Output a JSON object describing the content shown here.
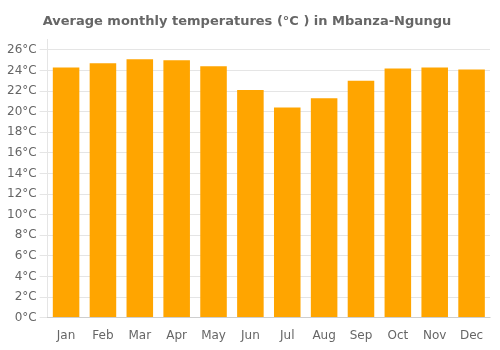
{
  "chart_data": {
    "type": "bar",
    "title": "Average monthly temperatures (°C ) in Mbanza-Ngungu",
    "categories": [
      "Jan",
      "Feb",
      "Mar",
      "Apr",
      "May",
      "Jun",
      "Jul",
      "Aug",
      "Sep",
      "Oct",
      "Nov",
      "Dec"
    ],
    "values": [
      24.3,
      24.7,
      25.1,
      25.0,
      24.4,
      22.1,
      20.4,
      21.3,
      23.0,
      24.2,
      24.3,
      24.1
    ],
    "color": "#FFA500",
    "ylim": [
      0,
      27
    ],
    "yticks": [
      {
        "value": 0,
        "label": "0°C"
      },
      {
        "value": 2,
        "label": "2°C"
      },
      {
        "value": 4,
        "label": "4°C"
      },
      {
        "value": 6,
        "label": "6°C"
      },
      {
        "value": 8,
        "label": "8°C"
      },
      {
        "value": 10,
        "label": "10°C"
      },
      {
        "value": 12,
        "label": "12°C"
      },
      {
        "value": 14,
        "label": "14°C"
      },
      {
        "value": 16,
        "label": "16°C"
      },
      {
        "value": 18,
        "label": "18°C"
      },
      {
        "value": 20,
        "label": "20°C"
      },
      {
        "value": 22,
        "label": "22°C"
      },
      {
        "value": 24,
        "label": "24°C"
      },
      {
        "value": 26,
        "label": "26°C"
      }
    ],
    "grid": true
  }
}
